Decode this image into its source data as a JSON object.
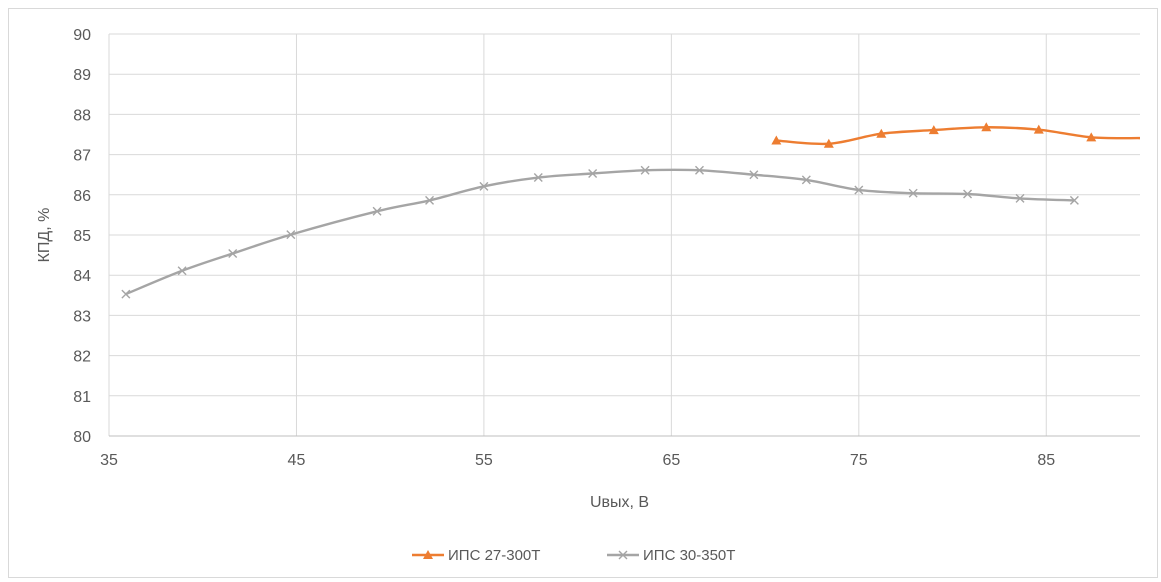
{
  "chart_data": {
    "type": "line",
    "title": "",
    "xlabel": "Uвых, В",
    "ylabel": "КПД, %",
    "xlim": [
      35,
      90
    ],
    "ylim": [
      80,
      90
    ],
    "x_ticks": [
      35,
      45,
      55,
      65,
      75,
      85
    ],
    "y_ticks": [
      80,
      81,
      82,
      83,
      84,
      85,
      86,
      87,
      88,
      89,
      90
    ],
    "grid": true,
    "legend_position": "bottom",
    "series": [
      {
        "name": "ИПС 27-300Т",
        "color": "#ED7D31",
        "marker": "triangle",
        "points": [
          [
            70.6,
            87.35
          ],
          [
            73.4,
            87.27
          ],
          [
            76.2,
            87.52
          ],
          [
            79.0,
            87.61
          ],
          [
            81.8,
            87.68
          ],
          [
            84.6,
            87.62
          ],
          [
            87.4,
            87.43
          ],
          [
            90.0,
            87.41
          ]
        ]
      },
      {
        "name": "ИПС 30-350Т",
        "color": "#A5A5A5",
        "marker": "x",
        "points": [
          [
            35.9,
            83.53
          ],
          [
            38.9,
            84.11
          ],
          [
            41.6,
            84.54
          ],
          [
            44.7,
            85.01
          ],
          [
            49.3,
            85.59
          ],
          [
            52.1,
            85.86
          ],
          [
            55.0,
            86.21
          ],
          [
            57.9,
            86.43
          ],
          [
            60.8,
            86.53
          ],
          [
            63.6,
            86.61
          ],
          [
            66.5,
            86.61
          ],
          [
            69.4,
            86.5
          ],
          [
            72.2,
            86.37
          ],
          [
            75.0,
            86.12
          ],
          [
            77.9,
            86.04
          ],
          [
            80.8,
            86.02
          ],
          [
            83.6,
            85.91
          ],
          [
            86.5,
            85.86
          ]
        ]
      }
    ]
  }
}
